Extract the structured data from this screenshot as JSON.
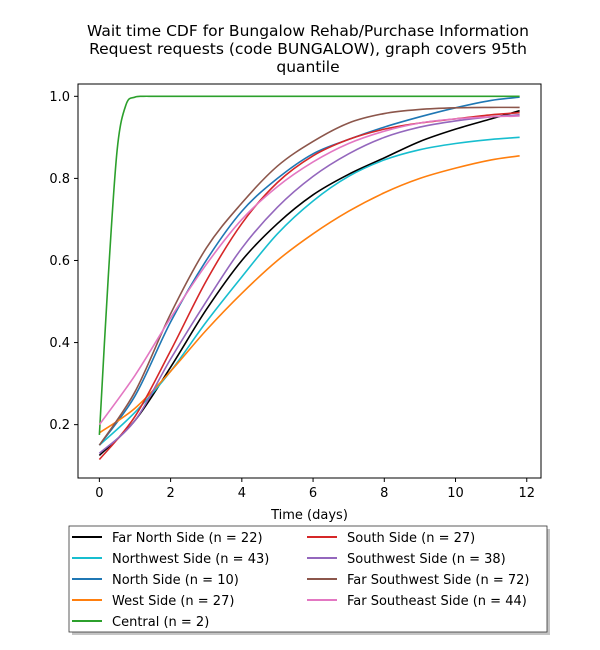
{
  "chart_data": {
    "type": "line",
    "title_lines": [
      "Wait time CDF for Bungalow Rehab/Purchase Information",
      "Request  requests (code BUNGALOW), graph covers 95th",
      "quantile"
    ],
    "xlabel": "Time (days)",
    "ylabel": "",
    "xlim": [
      -0.6,
      12.4
    ],
    "ylim": [
      0.07,
      1.03
    ],
    "xticks": [
      0,
      2,
      4,
      6,
      8,
      10,
      12
    ],
    "yticks": [
      0.2,
      0.4,
      0.6,
      0.8,
      1.0
    ],
    "xtick_labels": [
      "0",
      "2",
      "4",
      "6",
      "8",
      "10",
      "12"
    ],
    "ytick_labels": [
      "0.2",
      "0.4",
      "0.6",
      "0.8",
      "1.0"
    ],
    "grid": false,
    "legend_placement": "below plot, two columns",
    "series": [
      {
        "name": "Far North Side (n = 22)",
        "color": "#000000",
        "x": [
          0,
          1,
          2,
          3,
          4,
          5,
          6,
          7,
          8,
          9,
          10,
          11,
          11.8
        ],
        "y": [
          0.125,
          0.21,
          0.34,
          0.48,
          0.6,
          0.69,
          0.76,
          0.81,
          0.85,
          0.89,
          0.92,
          0.945,
          0.965
        ]
      },
      {
        "name": "Northwest Side (n = 43)",
        "color": "#17becf",
        "x": [
          0,
          1,
          2,
          3,
          4,
          5,
          6,
          7,
          8,
          9,
          10,
          11,
          11.8
        ],
        "y": [
          0.15,
          0.23,
          0.33,
          0.45,
          0.56,
          0.665,
          0.745,
          0.805,
          0.845,
          0.87,
          0.885,
          0.895,
          0.9
        ]
      },
      {
        "name": "North Side (n = 10)",
        "color": "#1f77b4",
        "x": [
          0,
          1,
          2,
          3,
          4,
          5,
          6,
          7,
          8,
          9,
          10,
          11,
          11.8
        ],
        "y": [
          0.15,
          0.27,
          0.45,
          0.6,
          0.72,
          0.8,
          0.86,
          0.895,
          0.925,
          0.95,
          0.972,
          0.99,
          0.998
        ]
      },
      {
        "name": "West Side (n = 27)",
        "color": "#ff7f0e",
        "x": [
          0,
          1,
          2,
          3,
          4,
          5,
          6,
          7,
          8,
          9,
          10,
          11,
          11.8
        ],
        "y": [
          0.18,
          0.24,
          0.33,
          0.43,
          0.52,
          0.6,
          0.665,
          0.72,
          0.765,
          0.8,
          0.825,
          0.845,
          0.855
        ]
      },
      {
        "name": "Central (n = 2)",
        "color": "#2ca02c",
        "x": [
          0,
          0.25,
          0.5,
          0.75,
          1.0,
          1.25,
          1.5,
          2,
          4,
          6,
          8,
          10,
          11.8
        ],
        "y": [
          0.175,
          0.56,
          0.87,
          0.98,
          0.998,
          1.0,
          1.0,
          1.0,
          1.0,
          1.0,
          1.0,
          1.0,
          1.0
        ]
      },
      {
        "name": "South Side (n = 27)",
        "color": "#d62728",
        "x": [
          0,
          1,
          2,
          3,
          4,
          5,
          6,
          7,
          8,
          9,
          10,
          11,
          11.8
        ],
        "y": [
          0.115,
          0.22,
          0.38,
          0.55,
          0.69,
          0.79,
          0.855,
          0.895,
          0.92,
          0.935,
          0.945,
          0.955,
          0.96
        ]
      },
      {
        "name": "Southwest Side (n = 38)",
        "color": "#9467bd",
        "x": [
          0,
          1,
          2,
          3,
          4,
          5,
          6,
          7,
          8,
          9,
          10,
          11,
          11.8
        ],
        "y": [
          0.13,
          0.21,
          0.36,
          0.5,
          0.63,
          0.73,
          0.805,
          0.86,
          0.9,
          0.925,
          0.94,
          0.95,
          0.955
        ]
      },
      {
        "name": "Far Southwest Side (n = 72)",
        "color": "#8c564b",
        "x": [
          0,
          1,
          2,
          3,
          4,
          5,
          6,
          7,
          8,
          9,
          10,
          11,
          11.8
        ],
        "y": [
          0.15,
          0.28,
          0.47,
          0.63,
          0.74,
          0.83,
          0.89,
          0.935,
          0.958,
          0.968,
          0.972,
          0.973,
          0.973
        ]
      },
      {
        "name": "Far Southeast Side (n = 44)",
        "color": "#e377c2",
        "x": [
          0,
          1,
          2,
          3,
          4,
          5,
          6,
          7,
          8,
          9,
          10,
          11,
          11.8
        ],
        "y": [
          0.2,
          0.32,
          0.46,
          0.59,
          0.7,
          0.78,
          0.84,
          0.885,
          0.915,
          0.935,
          0.945,
          0.95,
          0.952
        ]
      }
    ]
  }
}
